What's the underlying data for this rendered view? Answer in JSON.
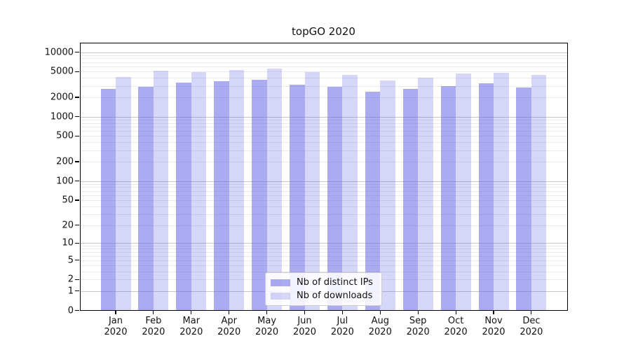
{
  "title": "topGO 2020",
  "legend": {
    "items": [
      {
        "label": "Nb of distinct IPs"
      },
      {
        "label": "Nb of downloads"
      }
    ]
  },
  "colors": {
    "series_base": "#6666e6",
    "series_ips_flat": "#a7a7f2",
    "series_downloads_flat": "#d9d9f8",
    "major_grid": "#c6c6c6",
    "minor_grid": "#e9e9e9",
    "axis": "#000000",
    "background": "#ffffff"
  },
  "chart_data": {
    "type": "bar",
    "title": "topGO 2020",
    "categories": [
      "Jan 2020",
      "Feb 2020",
      "Mar 2020",
      "Apr 2020",
      "May 2020",
      "Jun 2020",
      "Jul 2020",
      "Aug 2020",
      "Sep 2020",
      "Oct 2020",
      "Nov 2020",
      "Dec 2020"
    ],
    "series": [
      {
        "name": "Nb of distinct IPs",
        "color": "#6666e6",
        "alpha": 0.55,
        "values": [
          2700,
          2900,
          3350,
          3520,
          3730,
          3150,
          2900,
          2450,
          2700,
          2950,
          3270,
          2840
        ]
      },
      {
        "name": "Nb of downloads",
        "color": "#6666e6",
        "alpha": 0.27,
        "values": [
          4100,
          5150,
          4950,
          5300,
          5600,
          4900,
          4400,
          3650,
          4050,
          4650,
          4800,
          4480
        ]
      }
    ],
    "xlabel": "",
    "ylabel": "",
    "yscale": "symlog (pos = k*ln(1+v))",
    "yticks": [
      0,
      1,
      2,
      5,
      10,
      20,
      50,
      100,
      200,
      500,
      1000,
      2000,
      5000,
      10000
    ],
    "ylim": [
      0,
      14000
    ],
    "grid": "horizontal, log minor + major gridlines",
    "legend_position": "inside bottom-center"
  }
}
